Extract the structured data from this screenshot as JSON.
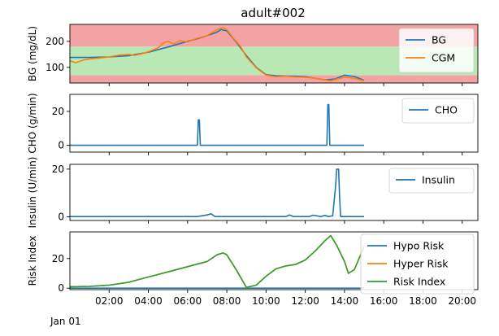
{
  "title": "adult#002",
  "x_axis": {
    "tick_labels": [
      "02:00",
      "04:00",
      "06:00",
      "08:00",
      "10:00",
      "12:00",
      "14:00",
      "16:00",
      "18:00",
      "20:00"
    ],
    "tick_hours": [
      2,
      4,
      6,
      8,
      10,
      12,
      14,
      16,
      18,
      20
    ],
    "date_label": "Jan 01",
    "range_hours": [
      0,
      20.8
    ]
  },
  "chart_data": [
    {
      "type": "line",
      "ylabel": "BG (mg/dL)",
      "ylim": [
        40,
        265
      ],
      "yticks": [
        100,
        200
      ],
      "bands": [
        {
          "from": 40,
          "to": 70,
          "color": "#f4a3a5"
        },
        {
          "from": 70,
          "to": 180,
          "color": "#b9e8b5"
        },
        {
          "from": 180,
          "to": 265,
          "color": "#f4a3a5"
        }
      ],
      "legend": "right",
      "series": [
        {
          "name": "BG",
          "color": "#1f77b4",
          "x": [
            0,
            1,
            2,
            3,
            4,
            5,
            6,
            6.5,
            7,
            7.5,
            7.7,
            8,
            8.5,
            9,
            9.5,
            10,
            10.5,
            11,
            11.5,
            12,
            12.5,
            13,
            13.5,
            14,
            14.5,
            15
          ],
          "y": [
            138,
            138,
            140,
            145,
            158,
            178,
            200,
            210,
            222,
            235,
            245,
            240,
            195,
            145,
            100,
            72,
            68,
            67,
            66,
            64,
            58,
            52,
            55,
            70,
            65,
            50
          ]
        },
        {
          "name": "CGM",
          "color": "#ff7f0e",
          "x": [
            0,
            0.3,
            0.7,
            1,
            1.5,
            2,
            2.5,
            3,
            3.3,
            3.7,
            4,
            4.5,
            4.8,
            5,
            5.3,
            5.6,
            6,
            6.5,
            7,
            7.3,
            7.6,
            7.8,
            8,
            8.3,
            8.7,
            9,
            9.5,
            10,
            10.5,
            11,
            11.5,
            12,
            12.5,
            13,
            13.3,
            13.6,
            14,
            14.5,
            15
          ],
          "y": [
            125,
            118,
            128,
            132,
            136,
            140,
            147,
            150,
            146,
            153,
            160,
            175,
            195,
            200,
            190,
            202,
            198,
            212,
            222,
            236,
            248,
            252,
            245,
            215,
            180,
            140,
            98,
            70,
            64,
            66,
            63,
            62,
            58,
            52,
            48,
            55,
            62,
            58,
            48
          ]
        }
      ]
    },
    {
      "type": "line",
      "ylabel": "CHO (g/min)",
      "ylim": [
        -4,
        30
      ],
      "yticks": [
        0,
        20
      ],
      "legend": "right",
      "series": [
        {
          "name": "CHO",
          "color": "#1f77b4",
          "x": [
            0,
            6.5,
            6.55,
            6.6,
            6.65,
            13.1,
            13.15,
            13.2,
            13.25,
            15
          ],
          "y": [
            0,
            0,
            15,
            15,
            0,
            0,
            24,
            24,
            0,
            0
          ]
        }
      ]
    },
    {
      "type": "line",
      "ylabel": "Insulin (U/min)",
      "ylim": [
        -1.5,
        22
      ],
      "yticks": [
        0,
        20
      ],
      "legend": "right",
      "series": [
        {
          "name": "Insulin",
          "color": "#1f77b4",
          "x": [
            0,
            6.5,
            7,
            7.2,
            7.4,
            8,
            11,
            11.2,
            11.4,
            12.2,
            12.4,
            12.8,
            13,
            13.2,
            13.4,
            13.55,
            13.6,
            13.7,
            13.75,
            13.8,
            14,
            15
          ],
          "y": [
            0.15,
            0.15,
            0.8,
            1.3,
            0.15,
            0.15,
            0.15,
            0.8,
            0.15,
            0.15,
            0.7,
            0.15,
            0.6,
            0.15,
            0.5,
            13,
            20,
            20,
            8,
            0.15,
            0.15,
            0.15
          ]
        }
      ]
    },
    {
      "type": "line",
      "ylabel": "Risk Index",
      "ylim": [
        -1,
        38
      ],
      "yticks": [
        0,
        20
      ],
      "legend": "right",
      "series": [
        {
          "name": "Hypo Risk",
          "color": "#1f77b4",
          "x": [
            0,
            15
          ],
          "y": [
            0,
            0
          ]
        },
        {
          "name": "Hyper Risk",
          "color": "#ff7f0e",
          "x": [
            0,
            1,
            2,
            3,
            4,
            5,
            6,
            7,
            7.5,
            7.8,
            8,
            8.5,
            9,
            9.5,
            10,
            10.5,
            11,
            11.5,
            12,
            12.5,
            13,
            13.3,
            13.6,
            14,
            14.2,
            14.5,
            15
          ],
          "y": [
            1,
            1.2,
            2,
            4,
            7.5,
            11,
            14.5,
            18,
            22.5,
            23.8,
            22.5,
            12,
            0.5,
            2,
            8,
            13,
            15,
            16,
            19,
            25,
            32,
            35.5,
            29,
            18,
            10,
            12.5,
            28
          ]
        },
        {
          "name": "Risk Index",
          "color": "#2ca02c",
          "x": [
            0,
            1,
            2,
            3,
            4,
            5,
            6,
            7,
            7.5,
            7.8,
            8,
            8.5,
            9,
            9.5,
            10,
            10.5,
            11,
            11.5,
            12,
            12.5,
            13,
            13.3,
            13.6,
            14,
            14.2,
            14.5,
            15
          ],
          "y": [
            1,
            1.2,
            2,
            4,
            7.5,
            11,
            14.5,
            18,
            22.5,
            23.8,
            22.5,
            12,
            0.5,
            2,
            8,
            13,
            15,
            16,
            19,
            25,
            32,
            35.5,
            29,
            18,
            10,
            12.5,
            28
          ]
        }
      ]
    }
  ]
}
